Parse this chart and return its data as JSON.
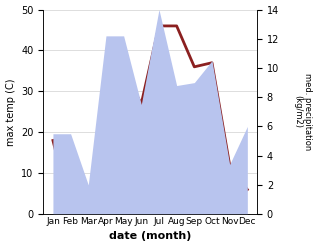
{
  "months": [
    "Jan",
    "Feb",
    "Mar",
    "Apr",
    "May",
    "Jun",
    "Jul",
    "Aug",
    "Sep",
    "Oct",
    "Nov",
    "Dec"
  ],
  "temp": [
    18,
    1,
    1,
    12,
    35,
    27,
    46,
    46,
    36,
    37,
    12,
    6
  ],
  "precip": [
    5.5,
    5.5,
    2.0,
    12.2,
    12.2,
    7.5,
    14.0,
    8.8,
    9.0,
    10.5,
    3.4,
    6.0
  ],
  "temp_color": "#8B2020",
  "precip_color": "#b8c4ee",
  "title": "",
  "ylabel_left": "max temp (C)",
  "ylabel_right": "med. precipitation\n(kg/m2)",
  "xlabel": "date (month)",
  "ylim_left": [
    0,
    50
  ],
  "ylim_right": [
    0,
    14
  ],
  "yticks_left": [
    0,
    10,
    20,
    30,
    40,
    50
  ],
  "yticks_right": [
    0,
    2,
    4,
    6,
    8,
    10,
    12,
    14
  ],
  "bg_color": "#ffffff",
  "grid_color": "#d0d0d0",
  "line_width": 2.0
}
